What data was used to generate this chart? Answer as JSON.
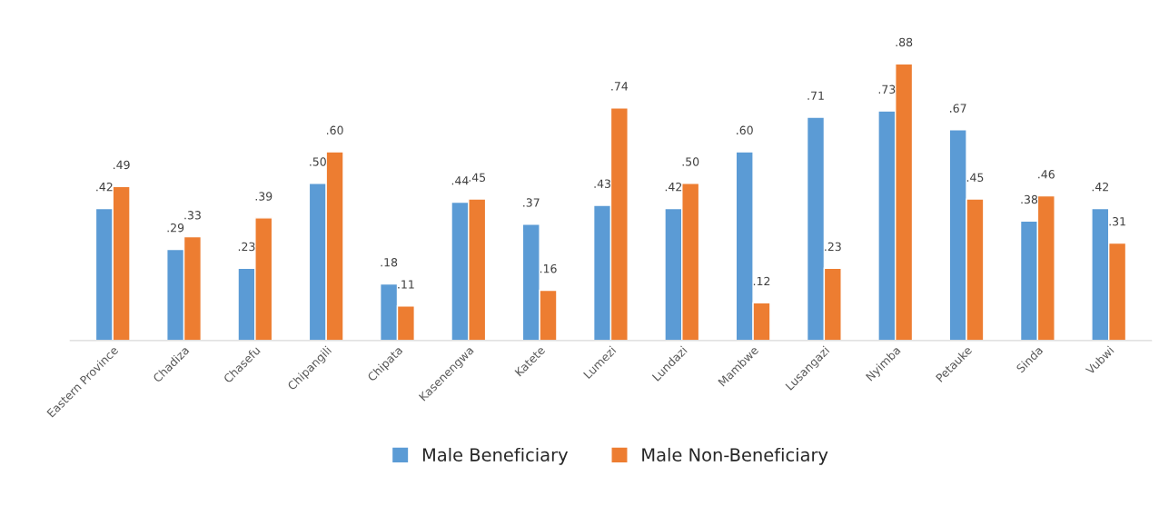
{
  "chart_data": {
    "type": "bar",
    "categories": [
      "Eastern Province",
      "Chadiza",
      "Chasefu",
      "Chipangili",
      "Chipata",
      "Kasenengwa",
      "Katete",
      "Lumezi",
      "Lundazi",
      "Mambwe",
      "Lusangazi",
      "Nyimba",
      "Petauke",
      "Sinda",
      "Vubwi"
    ],
    "series": [
      {
        "name": "Male Beneficiary",
        "color": "#5b9bd5",
        "values": [
          0.42,
          0.29,
          0.23,
          0.5,
          0.18,
          0.44,
          0.37,
          0.43,
          0.42,
          0.6,
          0.71,
          0.73,
          0.67,
          0.38,
          0.42
        ],
        "value_labels": [
          ".42",
          ".29",
          ".23",
          ".50",
          ".18",
          ".44",
          ".37",
          ".43",
          ".42",
          ".60",
          ".71",
          ".73",
          ".67",
          ".38",
          ".42"
        ]
      },
      {
        "name": "Male Non-Beneficiary",
        "color": "#ed7d31",
        "values": [
          0.49,
          0.33,
          0.39,
          0.6,
          0.11,
          0.45,
          0.16,
          0.74,
          0.5,
          0.12,
          0.23,
          0.88,
          0.45,
          0.46,
          0.31
        ],
        "value_labels": [
          ".49",
          ".33",
          ".39",
          ".60",
          ".11",
          ".45",
          ".16",
          ".74",
          ".50",
          ".12",
          ".23",
          ".88",
          ".45",
          ".46",
          ".31"
        ]
      }
    ],
    "legend": "bottom",
    "grid": false
  }
}
